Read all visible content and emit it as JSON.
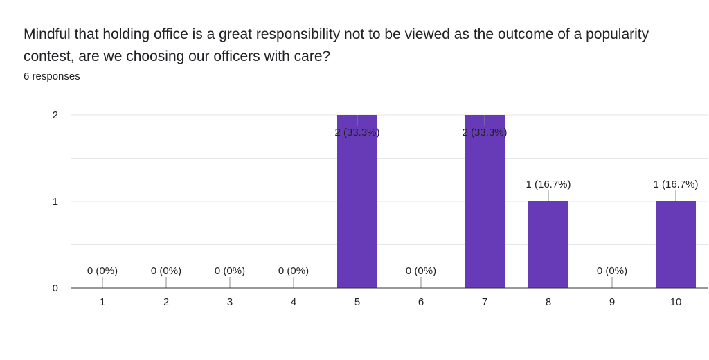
{
  "question": {
    "title": "Mindful that holding office is a great responsibility not to be viewed as the outcome of a popularity contest, are we choosing our officers with care?",
    "responses": "6 responses"
  },
  "colors": {
    "bar": "#673ab7",
    "grid": "#e6e6e6",
    "axis": "#333333",
    "text": "#202124"
  },
  "chart_data": {
    "type": "bar",
    "categories": [
      "1",
      "2",
      "3",
      "4",
      "5",
      "6",
      "7",
      "8",
      "9",
      "10"
    ],
    "values": [
      0,
      0,
      0,
      0,
      2,
      0,
      2,
      1,
      0,
      1
    ],
    "data_labels": [
      "0 (0%)",
      "0 (0%)",
      "0 (0%)",
      "0 (0%)",
      "2 (33.3%)",
      "0 (0%)",
      "2 (33.3%)",
      "1 (16.7%)",
      "0 (0%)",
      "1 (16.7%)"
    ],
    "yticks": [
      0,
      1,
      2
    ],
    "ylim": [
      0,
      2
    ],
    "xlabel": "",
    "ylabel": "",
    "grid": true
  }
}
